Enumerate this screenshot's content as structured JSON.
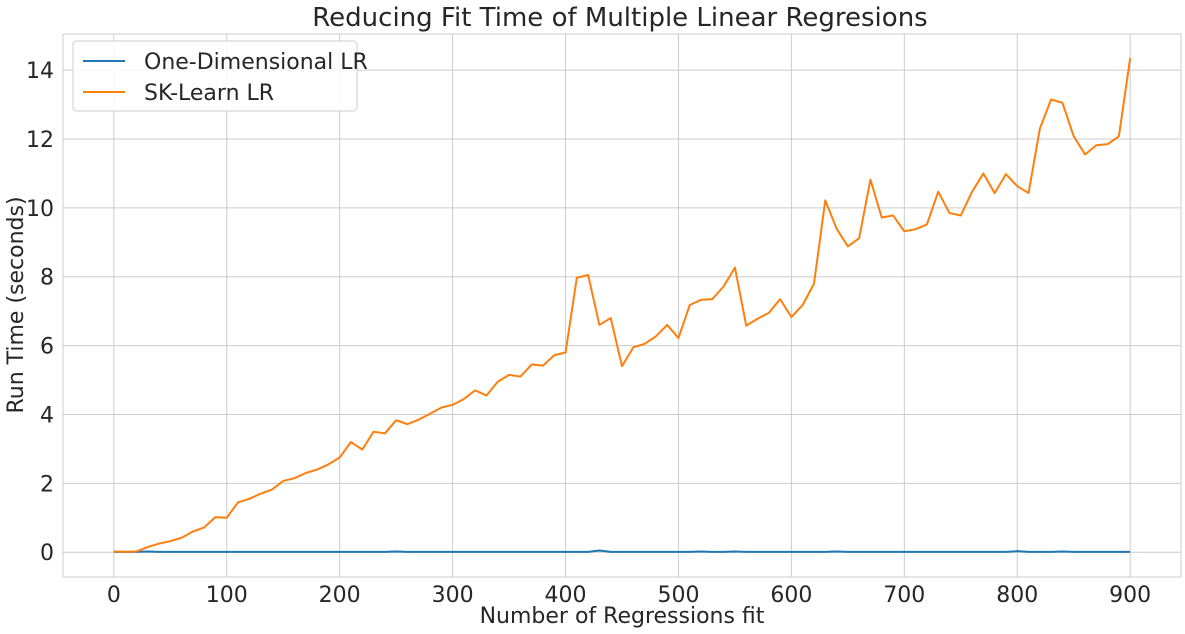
{
  "chart_data": {
    "type": "line",
    "title": "Reducing Fit Time of Multiple Linear Regresions",
    "xlabel": "Number of Regressions fit",
    "ylabel": "Run Time (seconds)",
    "xlim": [
      -45,
      945
    ],
    "ylim": [
      -0.72,
      15.05
    ],
    "xticks": [
      0,
      100,
      200,
      300,
      400,
      500,
      600,
      700,
      800,
      900
    ],
    "yticks": [
      0,
      2,
      4,
      6,
      8,
      10,
      12,
      14
    ],
    "grid": true,
    "legend_position": "top-left",
    "x": [
      0,
      10,
      20,
      30,
      40,
      50,
      60,
      70,
      80,
      90,
      100,
      110,
      120,
      130,
      140,
      150,
      160,
      170,
      180,
      190,
      200,
      210,
      220,
      230,
      240,
      250,
      260,
      270,
      280,
      290,
      300,
      310,
      320,
      330,
      340,
      350,
      360,
      370,
      380,
      390,
      400,
      410,
      420,
      430,
      440,
      450,
      460,
      470,
      480,
      490,
      500,
      510,
      520,
      530,
      540,
      550,
      560,
      570,
      580,
      590,
      600,
      610,
      620,
      630,
      640,
      650,
      660,
      670,
      680,
      690,
      700,
      710,
      720,
      730,
      740,
      750,
      760,
      770,
      780,
      790,
      800,
      810,
      820,
      830,
      840,
      850,
      860,
      870,
      880,
      890,
      900
    ],
    "series": [
      {
        "name": "One-Dimensional LR",
        "color": "#1f77b4",
        "values": [
          0.01,
          0.01,
          0.01,
          0.02,
          0.01,
          0.01,
          0.01,
          0.01,
          0.01,
          0.01,
          0.01,
          0.01,
          0.01,
          0.01,
          0.01,
          0.01,
          0.01,
          0.01,
          0.01,
          0.01,
          0.01,
          0.01,
          0.01,
          0.01,
          0.01,
          0.02,
          0.01,
          0.01,
          0.01,
          0.01,
          0.01,
          0.01,
          0.01,
          0.01,
          0.01,
          0.01,
          0.01,
          0.01,
          0.01,
          0.01,
          0.01,
          0.01,
          0.01,
          0.05,
          0.01,
          0.01,
          0.01,
          0.01,
          0.01,
          0.01,
          0.01,
          0.01,
          0.02,
          0.01,
          0.01,
          0.02,
          0.01,
          0.01,
          0.01,
          0.01,
          0.01,
          0.01,
          0.01,
          0.01,
          0.02,
          0.01,
          0.01,
          0.01,
          0.01,
          0.01,
          0.01,
          0.01,
          0.01,
          0.01,
          0.01,
          0.01,
          0.01,
          0.01,
          0.01,
          0.01,
          0.03,
          0.01,
          0.01,
          0.01,
          0.02,
          0.01,
          0.01,
          0.01,
          0.01,
          0.01,
          0.01
        ]
      },
      {
        "name": "SK-Learn LR",
        "color": "#ff7f0e",
        "values": [
          0.02,
          0.01,
          0.02,
          0.15,
          0.25,
          0.32,
          0.42,
          0.6,
          0.72,
          1.02,
          1.0,
          1.45,
          1.55,
          1.7,
          1.82,
          2.07,
          2.15,
          2.3,
          2.4,
          2.55,
          2.75,
          3.2,
          2.98,
          3.5,
          3.45,
          3.83,
          3.72,
          3.85,
          4.02,
          4.2,
          4.28,
          4.45,
          4.7,
          4.55,
          4.95,
          5.15,
          5.1,
          5.45,
          5.42,
          5.72,
          5.8,
          7.97,
          8.05,
          6.6,
          6.8,
          5.4,
          5.95,
          6.05,
          6.27,
          6.6,
          6.22,
          7.18,
          7.33,
          7.35,
          7.72,
          8.27,
          6.58,
          6.78,
          6.95,
          7.35,
          6.83,
          7.18,
          7.8,
          10.22,
          9.4,
          8.88,
          9.12,
          10.82,
          9.72,
          9.78,
          9.32,
          9.38,
          9.52,
          10.47,
          9.85,
          9.78,
          10.47,
          11.0,
          10.43,
          10.98,
          10.63,
          10.43,
          12.3,
          13.15,
          13.05,
          12.08,
          11.55,
          11.82,
          11.85,
          12.08,
          14.35
        ]
      }
    ]
  }
}
